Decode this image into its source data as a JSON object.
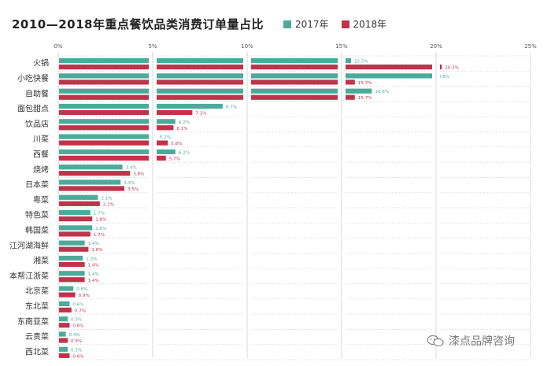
{
  "chart_data": {
    "type": "bar",
    "orientation": "horizontal",
    "title": "2010—2018年重点餐饮品类消费订单量占比",
    "xlim": [
      0,
      25
    ],
    "x_ticks": [
      "0%",
      "5%",
      "10%",
      "15%",
      "20%",
      "25%"
    ],
    "grid": true,
    "legend_position": "top-right",
    "categories": [
      "火锅",
      "小吃快餐",
      "自助餐",
      "面包甜点",
      "饮品店",
      "川菜",
      "西餐",
      "烧烤",
      "日本菜",
      "粤菜",
      "特色菜",
      "韩国菜",
      "江河湖海鲜",
      "湘菜",
      "本帮江浙菜",
      "北京菜",
      "东北菜",
      "东南亚菜",
      "云贵菜",
      "西北菜"
    ],
    "series": [
      {
        "name": "2017年",
        "color": "#4bab9a",
        "values": [
          15.5,
          19.8,
          16.6,
          8.7,
          6.2,
          5.2,
          6.2,
          3.4,
          3.3,
          2.1,
          1.7,
          1.8,
          1.4,
          1.3,
          1.4,
          0.8,
          0.6,
          0.5,
          0.4,
          0.5
        ],
        "labels": [
          "15.5%",
          "19.8%",
          "16.6%",
          "8.7%",
          "6.2%",
          "5.2%",
          "6.2%",
          "3.4%",
          "3.3%",
          "2.1%",
          "1.7%",
          "1.8%",
          "1.4%",
          "1.3%",
          "1.4%",
          "0.8%",
          "0.6%",
          "0.5%",
          "0.4%",
          "0.5%"
        ]
      },
      {
        "name": "2018年",
        "color": "#c0334a",
        "values": [
          20.3,
          15.7,
          15.7,
          7.1,
          6.1,
          5.8,
          5.7,
          3.8,
          3.5,
          2.2,
          1.8,
          1.7,
          1.6,
          1.4,
          1.4,
          0.9,
          0.7,
          0.6,
          0.5,
          0.6
        ],
        "labels": [
          "20.3%",
          "15.7%",
          "15.7%",
          "7.1%",
          "6.1%",
          "5.8%",
          "5.7%",
          "3.8%",
          "3.5%",
          "2.2%",
          "1.8%",
          "1.7%",
          "1.6%",
          "1.4%",
          "1.4%",
          "0.9%",
          "0.7%",
          "0.6%",
          "0.5%",
          "0.6%"
        ]
      }
    ]
  },
  "watermark": {
    "text": "漆点品牌咨询",
    "icon": "wechat-icon"
  }
}
